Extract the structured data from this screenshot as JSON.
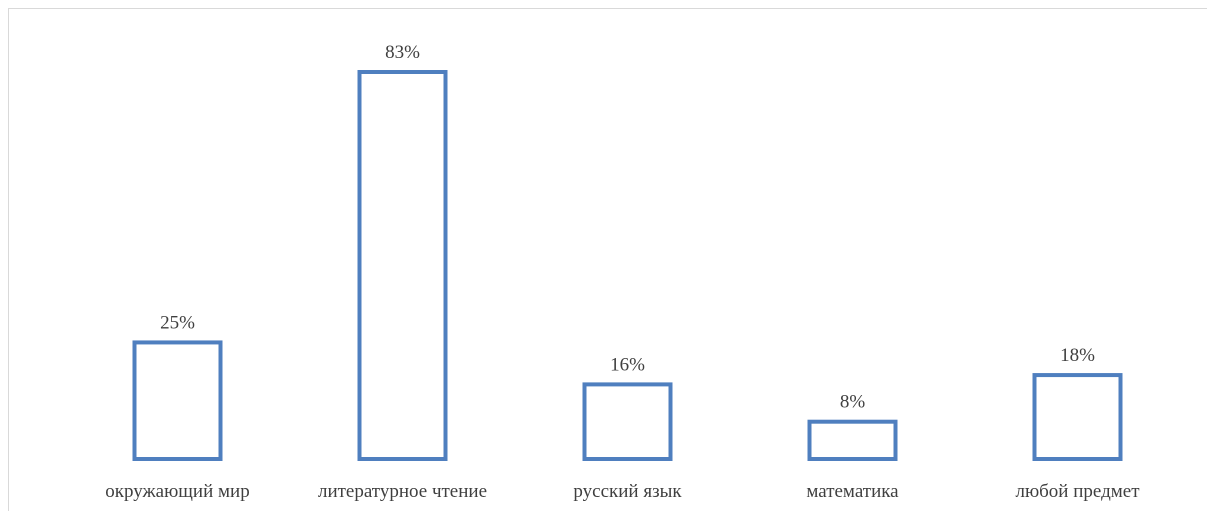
{
  "chart_data": {
    "type": "bar",
    "categories": [
      "окружающий мир",
      "литературное чтение",
      "русский язык",
      "математика",
      "любой предмет"
    ],
    "values": [
      25,
      83,
      16,
      8,
      18
    ],
    "data_labels": [
      "25%",
      "83%",
      "16%",
      "8%",
      "18%"
    ],
    "title": "",
    "xlabel": "",
    "ylabel": "",
    "ylim": [
      0,
      83
    ],
    "grid": false,
    "legend": "none",
    "colors": {
      "bar_outline": "#4f7fbf",
      "bar_fill": "#ffffff",
      "text": "#3f3f3f",
      "frame": "#d9d9d9"
    }
  }
}
